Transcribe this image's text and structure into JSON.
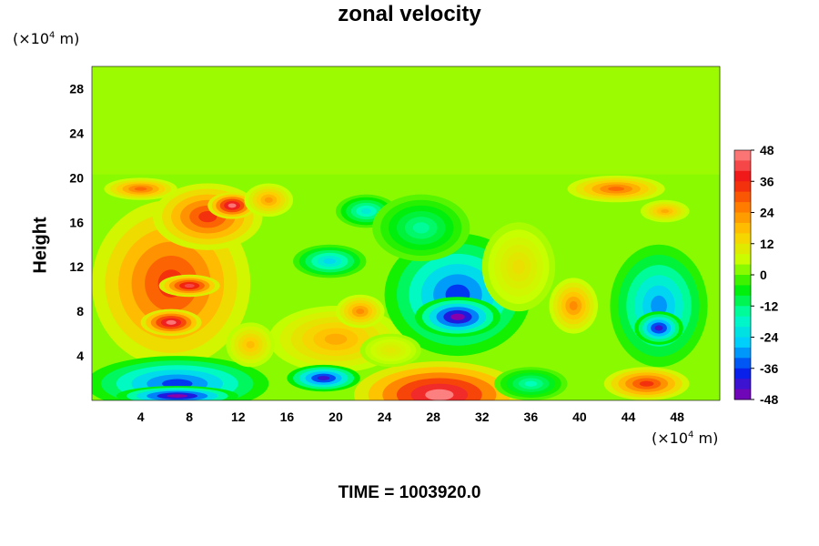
{
  "chart_data": {
    "type": "heatmap",
    "title": "zonal velocity",
    "ylabel": "Height",
    "y_unit_prefix": "(×10",
    "y_unit_exp": "4",
    "y_unit_suffix": " m)",
    "x_unit_prefix": "(×10",
    "x_unit_exp": "4",
    "x_unit_suffix": " m)",
    "footer": "TIME = 1003920.0",
    "xlim": [
      0,
      51.5
    ],
    "ylim": [
      0,
      30
    ],
    "xticks": [
      4,
      8,
      12,
      16,
      20,
      24,
      28,
      32,
      36,
      40,
      44,
      48
    ],
    "yticks": [
      4,
      8,
      12,
      16,
      20,
      24,
      28
    ],
    "colorbar": {
      "range": [
        -48,
        48
      ],
      "ticks": [
        48,
        36,
        24,
        12,
        0,
        -12,
        -24,
        -36,
        -48
      ],
      "colors": [
        "#ff8c8c",
        "#ee1111",
        "#ff7700",
        "#ffcc00",
        "#c8ff00",
        "#00ee00",
        "#00ffbb",
        "#00ccff",
        "#0022ee",
        "#8800aa"
      ]
    },
    "background_value": 2,
    "features": [
      {
        "x": 6.5,
        "y": 10.5,
        "rx": 6.5,
        "ry": 7.5,
        "v": 34
      },
      {
        "x": 6.5,
        "y": 7.0,
        "rx": 2.5,
        "ry": 1.2,
        "v": 46
      },
      {
        "x": 8.0,
        "y": 10.3,
        "rx": 2.5,
        "ry": 1.0,
        "v": 42
      },
      {
        "x": 9.5,
        "y": 16.5,
        "rx": 4.5,
        "ry": 3.0,
        "v": 34
      },
      {
        "x": 11.5,
        "y": 17.5,
        "rx": 2.0,
        "ry": 1.2,
        "v": 46
      },
      {
        "x": 4.0,
        "y": 19.0,
        "rx": 3.0,
        "ry": 1.0,
        "v": 28
      },
      {
        "x": 19.5,
        "y": 5.5,
        "rx": 4.0,
        "ry": 1.8,
        "v": 46
      },
      {
        "x": 20.0,
        "y": 5.5,
        "rx": 5.5,
        "ry": 3.0,
        "v": 20
      },
      {
        "x": 22.0,
        "y": 8.0,
        "rx": 2.0,
        "ry": 1.5,
        "v": 24
      },
      {
        "x": 7.0,
        "y": 1.5,
        "rx": 7.5,
        "ry": 2.5,
        "v": -36
      },
      {
        "x": 7.0,
        "y": 0.4,
        "rx": 5.0,
        "ry": 0.9,
        "v": -48
      },
      {
        "x": 19.0,
        "y": 2.0,
        "rx": 3.0,
        "ry": 1.2,
        "v": -42
      },
      {
        "x": 28.5,
        "y": 0.5,
        "rx": 7.0,
        "ry": 3.0,
        "v": 47
      },
      {
        "x": 30.0,
        "y": 9.5,
        "rx": 6.0,
        "ry": 5.5,
        "v": -36
      },
      {
        "x": 30.0,
        "y": 7.5,
        "rx": 3.5,
        "ry": 1.8,
        "v": -48
      },
      {
        "x": 19.5,
        "y": 12.5,
        "rx": 3.0,
        "ry": 1.5,
        "v": -24
      },
      {
        "x": 22.5,
        "y": 17.0,
        "rx": 2.5,
        "ry": 1.5,
        "v": -20
      },
      {
        "x": 27.0,
        "y": 15.5,
        "rx": 4.0,
        "ry": 3.0,
        "v": -14
      },
      {
        "x": 39.5,
        "y": 8.5,
        "rx": 2.0,
        "ry": 2.5,
        "v": 24
      },
      {
        "x": 46.5,
        "y": 8.5,
        "rx": 4.0,
        "ry": 5.5,
        "v": -30
      },
      {
        "x": 46.5,
        "y": 6.5,
        "rx": 2.0,
        "ry": 1.5,
        "v": -42
      },
      {
        "x": 45.5,
        "y": 1.5,
        "rx": 3.5,
        "ry": 1.5,
        "v": 34
      },
      {
        "x": 43.0,
        "y": 19.0,
        "rx": 4.0,
        "ry": 1.2,
        "v": 28
      },
      {
        "x": 47.0,
        "y": 17.0,
        "rx": 2.0,
        "ry": 1.0,
        "v": 20
      },
      {
        "x": 36.0,
        "y": 1.5,
        "rx": 3.0,
        "ry": 1.5,
        "v": -16
      },
      {
        "x": 14.5,
        "y": 18.0,
        "rx": 2.0,
        "ry": 1.5,
        "v": 22
      },
      {
        "x": 13.0,
        "y": 5.0,
        "rx": 2.0,
        "ry": 2.0,
        "v": 18
      },
      {
        "x": 35.0,
        "y": 12.0,
        "rx": 3.0,
        "ry": 4.0,
        "v": 12
      },
      {
        "x": 24.5,
        "y": 4.5,
        "rx": 2.5,
        "ry": 1.5,
        "v": 10
      }
    ],
    "grid": false,
    "legend_position": "right"
  }
}
